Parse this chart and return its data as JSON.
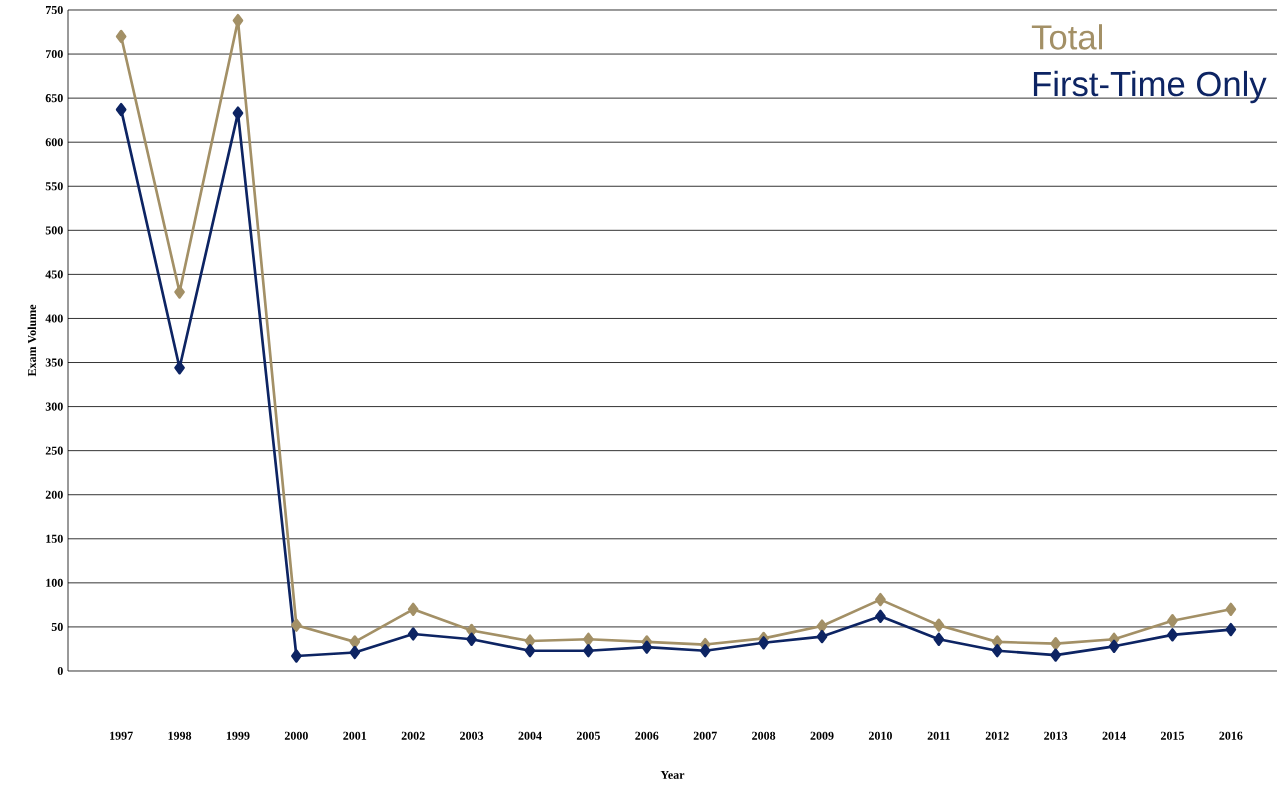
{
  "chart_data": {
    "type": "line",
    "xlabel": "Year",
    "ylabel": "Exam Volume",
    "categories": [
      "1997",
      "1998",
      "1999",
      "2000",
      "2001",
      "2002",
      "2003",
      "2004",
      "2005",
      "2006",
      "2007",
      "2008",
      "2009",
      "2010",
      "2011",
      "2012",
      "2013",
      "2014",
      "2015",
      "2016"
    ],
    "series": [
      {
        "name": "Total",
        "color": "#a39066",
        "values": [
          720,
          430,
          738,
          52,
          33,
          70,
          46,
          34,
          36,
          33,
          30,
          37,
          51,
          81,
          52,
          33,
          31,
          36,
          57,
          70
        ]
      },
      {
        "name": "First-Time Only",
        "color": "#0d2463",
        "values": [
          637,
          344,
          633,
          17,
          21,
          42,
          36,
          23,
          23,
          27,
          23,
          32,
          39,
          62,
          36,
          23,
          18,
          28,
          41,
          47
        ]
      }
    ],
    "ylim": [
      0,
      750
    ],
    "yticks": [
      0,
      50,
      100,
      150,
      200,
      250,
      300,
      350,
      400,
      450,
      500,
      550,
      600,
      650,
      700,
      750
    ],
    "grid": "y",
    "legend": "top right",
    "marker": "diamond",
    "line_style": "solid"
  }
}
